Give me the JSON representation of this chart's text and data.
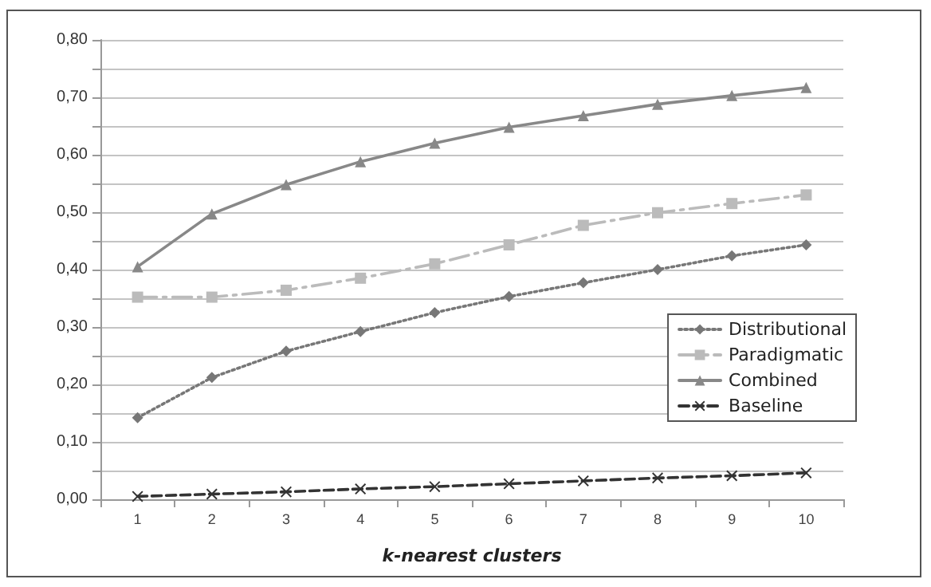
{
  "chart_data": {
    "type": "line",
    "xlabel": "k-nearest clusters",
    "categories": [
      "1",
      "2",
      "3",
      "4",
      "5",
      "6",
      "7",
      "8",
      "9",
      "10"
    ],
    "series": [
      {
        "name": "Distributional",
        "color": "#777777",
        "marker": "diamond",
        "line_style": "dotted",
        "values": [
          0.142,
          0.212,
          0.258,
          0.292,
          0.325,
          0.353,
          0.377,
          0.4,
          0.424,
          0.443
        ]
      },
      {
        "name": "Paradigmatic",
        "color": "#bbbbbb",
        "marker": "square",
        "line_style": "dashdot",
        "values": [
          0.352,
          0.352,
          0.364,
          0.385,
          0.41,
          0.443,
          0.477,
          0.499,
          0.515,
          0.53
        ]
      },
      {
        "name": "Combined",
        "color": "#888888",
        "marker": "triangle",
        "line_style": "solid",
        "values": [
          0.405,
          0.497,
          0.548,
          0.588,
          0.62,
          0.648,
          0.668,
          0.688,
          0.703,
          0.717
        ]
      },
      {
        "name": "Baseline",
        "color": "#333333",
        "marker": "cross",
        "line_style": "dashed",
        "values": [
          0.005,
          0.009,
          0.013,
          0.018,
          0.022,
          0.027,
          0.032,
          0.037,
          0.041,
          0.046
        ]
      }
    ],
    "ylim": [
      0,
      0.8
    ],
    "yticks": [
      {
        "value": 0,
        "label": "0,00"
      },
      {
        "value": 0.05,
        "label": null
      },
      {
        "value": 0.1,
        "label": "0,10"
      },
      {
        "value": 0.15,
        "label": null
      },
      {
        "value": 0.2,
        "label": "0,20"
      },
      {
        "value": 0.25,
        "label": null
      },
      {
        "value": 0.3,
        "label": "0,30"
      },
      {
        "value": 0.35,
        "label": null
      },
      {
        "value": 0.4,
        "label": "0,40"
      },
      {
        "value": 0.45,
        "label": null
      },
      {
        "value": 0.5,
        "label": "0,50"
      },
      {
        "value": 0.55,
        "label": null
      },
      {
        "value": 0.6,
        "label": "0,60"
      },
      {
        "value": 0.65,
        "label": null
      },
      {
        "value": 0.7,
        "label": "0,70"
      },
      {
        "value": 0.75,
        "label": null
      },
      {
        "value": 0.8,
        "label": "0,80"
      }
    ],
    "grid": "y",
    "legend": "right"
  }
}
